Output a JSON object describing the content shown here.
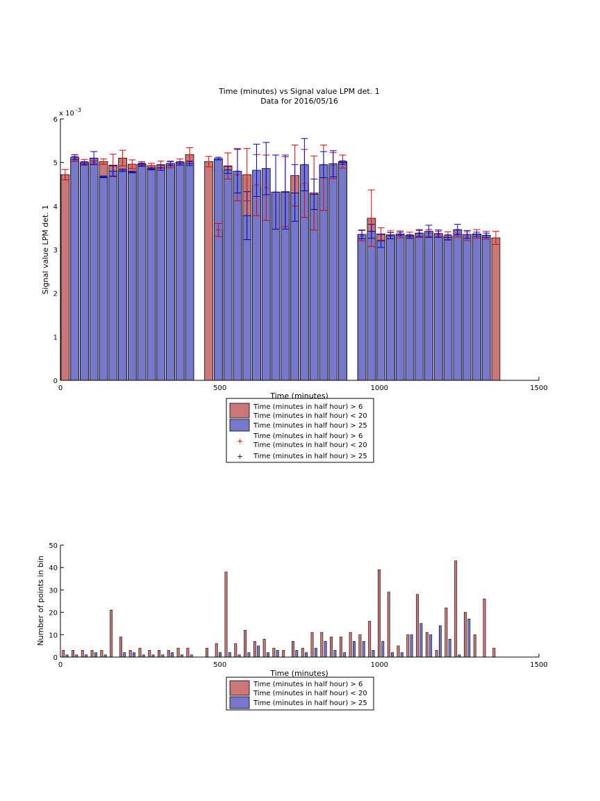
{
  "chart_data": [
    {
      "type": "bar",
      "title": "Time (minutes) vs Signal value LPM det. 1",
      "subtitle": "Data for 2016/05/16",
      "xlabel": "Time (minutes)",
      "ylabel": "Signal value LPM det. 1",
      "y_exponent_label": "x 10",
      "y_exponent": "-3",
      "xlim": [
        0,
        1500
      ],
      "ylim": [
        0,
        6
      ],
      "x_ticks": [
        "0",
        "500",
        "1000",
        "1500"
      ],
      "y_ticks": [
        "0",
        "1",
        "2",
        "3",
        "4",
        "5",
        "6"
      ],
      "grid": false,
      "legend": {
        "placement": "below",
        "entries": [
          "Time (minutes in half hour) > 6",
          "Time (minutes in half hour) < 20",
          "Time (minutes in half hour) > 25",
          "Time (minutes in half hour) > 6",
          "Time (minutes in half hour) < 20",
          "Time (minutes in half hour) > 25"
        ]
      },
      "series": [
        {
          "color": "#cc7777",
          "x": [
            15,
            45,
            75,
            105,
            135,
            165,
            195,
            225,
            255,
            285,
            315,
            345,
            375,
            405,
            465,
            495,
            525,
            555,
            585,
            615,
            645,
            675,
            705,
            735,
            765,
            795,
            825,
            855,
            885,
            945,
            975,
            1005,
            1035,
            1065,
            1095,
            1125,
            1155,
            1185,
            1215,
            1245,
            1275,
            1305,
            1335,
            1365
          ],
          "values": [
            4.72,
            5.08,
            5.01,
            5.0,
            5.02,
            4.94,
            5.1,
            4.96,
            4.97,
            4.93,
            4.95,
            4.95,
            5.01,
            5.18,
            5.02,
            3.45,
            4.92,
            4.72,
            4.72,
            4.48,
            4.42,
            4.32,
            4.33,
            4.7,
            4.52,
            4.3,
            4.65,
            4.93,
            5.02,
            3.32,
            3.72,
            3.36,
            3.34,
            3.35,
            3.33,
            3.36,
            3.38,
            3.35,
            3.32,
            3.37,
            3.31,
            3.36,
            3.33,
            3.27
          ],
          "errors": [
            0.12,
            0.06,
            0.06,
            0.04,
            0.06,
            0.25,
            0.18,
            0.1,
            0.05,
            0.05,
            0.08,
            0.07,
            0.07,
            0.16,
            0.12,
            0.15,
            0.3,
            0.6,
            0.6,
            0.7,
            0.75,
            0.85,
            0.8,
            0.7,
            0.78,
            0.85,
            0.75,
            0.3,
            0.15,
            0.12,
            0.65,
            0.14,
            0.09,
            0.08,
            0.07,
            0.08,
            0.08,
            0.07,
            0.09,
            0.08,
            0.1,
            0.1,
            0.09,
            0.15
          ]
        },
        {
          "color": "#7777cc",
          "x": [
            45,
            75,
            105,
            135,
            165,
            195,
            225,
            255,
            285,
            315,
            345,
            375,
            405,
            495,
            525,
            555,
            585,
            615,
            645,
            675,
            705,
            735,
            765,
            795,
            825,
            855,
            885,
            945,
            975,
            1005,
            1035,
            1065,
            1095,
            1125,
            1155,
            1185,
            1215,
            1245,
            1275,
            1305,
            1335
          ],
          "values": [
            5.12,
            4.98,
            5.1,
            4.67,
            4.8,
            4.82,
            4.78,
            4.95,
            4.85,
            4.88,
            4.98,
            4.98,
            4.98,
            5.09,
            4.83,
            4.8,
            3.78,
            4.82,
            4.86,
            4.32,
            4.32,
            4.3,
            4.95,
            4.27,
            4.95,
            4.97,
            5.0,
            3.35,
            3.42,
            3.2,
            3.32,
            3.36,
            3.3,
            3.38,
            3.42,
            3.37,
            3.28,
            3.46,
            3.35,
            3.35,
            3.33
          ],
          "errors": [
            0.06,
            0.04,
            0.15,
            0.02,
            0.12,
            0.03,
            0.02,
            0.04,
            0.02,
            0.06,
            0.05,
            0.04,
            0.05,
            0.03,
            0.08,
            0.5,
            0.55,
            0.6,
            0.6,
            0.85,
            0.85,
            0.65,
            0.6,
            0.35,
            0.3,
            0.3,
            0.04,
            0.1,
            0.16,
            0.15,
            0.07,
            0.04,
            0.04,
            0.08,
            0.14,
            0.08,
            0.06,
            0.12,
            0.09,
            0.05,
            0.05
          ]
        }
      ]
    },
    {
      "type": "bar",
      "title": "",
      "xlabel": "Time (minutes)",
      "ylabel": "Number of points in bin",
      "xlim": [
        0,
        1500
      ],
      "ylim": [
        0,
        50
      ],
      "x_ticks": [
        "0",
        "500",
        "1000",
        "1500"
      ],
      "y_ticks": [
        "0",
        "10",
        "20",
        "30",
        "40",
        "50"
      ],
      "grid": false,
      "legend": {
        "placement": "below",
        "entries": [
          "Time (minutes in half hour) > 6",
          "Time (minutes in half hour) < 20",
          "Time (minutes in half hour) > 25"
        ]
      },
      "series": [
        {
          "color": "#cc7777",
          "x": [
            15,
            45,
            75,
            105,
            135,
            165,
            195,
            225,
            255,
            285,
            315,
            345,
            375,
            405,
            465,
            495,
            525,
            555,
            585,
            615,
            645,
            675,
            705,
            735,
            765,
            795,
            825,
            855,
            885,
            915,
            945,
            975,
            1005,
            1035,
            1065,
            1095,
            1125,
            1155,
            1185,
            1215,
            1245,
            1275,
            1305,
            1335,
            1365
          ],
          "values": [
            3,
            3,
            3,
            3,
            3,
            21,
            9,
            3,
            4,
            3,
            3,
            3,
            4,
            4,
            4,
            6,
            38,
            6,
            12,
            7,
            8,
            4,
            3,
            7,
            4,
            11,
            11,
            9,
            9,
            11,
            10,
            16,
            39,
            29,
            5,
            10,
            28,
            11,
            3,
            22,
            43,
            20,
            10,
            26,
            4
          ]
        },
        {
          "color": "#7777cc",
          "x": [
            15,
            45,
            75,
            105,
            135,
            165,
            195,
            225,
            255,
            285,
            315,
            345,
            375,
            405,
            465,
            495,
            525,
            555,
            585,
            615,
            645,
            675,
            705,
            735,
            765,
            795,
            825,
            855,
            885,
            915,
            945,
            975,
            1005,
            1035,
            1065,
            1095,
            1125,
            1155,
            1185,
            1215,
            1245,
            1275,
            1305,
            1335,
            1365
          ],
          "values": [
            1,
            1,
            1,
            2,
            1,
            0,
            2,
            2,
            1,
            1,
            1,
            2,
            1,
            1,
            0,
            2,
            2,
            1,
            2,
            5,
            2,
            3,
            0,
            3,
            2,
            4,
            7,
            3,
            2,
            7,
            7,
            3,
            7,
            2,
            2,
            10,
            15,
            10,
            14,
            8,
            1,
            17,
            0,
            0,
            0
          ]
        }
      ]
    }
  ]
}
